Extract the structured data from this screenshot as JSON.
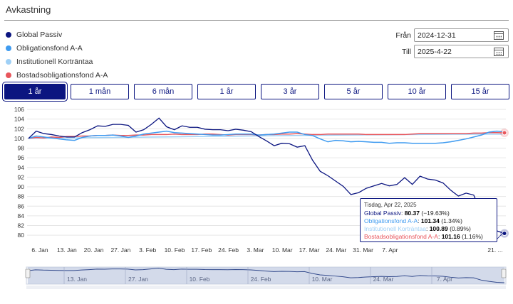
{
  "header": {
    "title": "Avkastning"
  },
  "legend": [
    {
      "label": "Global Passiv",
      "color": "#0b1580"
    },
    {
      "label": "Obligationsfond A-A",
      "color": "#3f9bf0"
    },
    {
      "label": "Institutionell Korträntaa",
      "color": "#9fd0f6"
    },
    {
      "label": "Bostadsobligationsfond A-A",
      "color": "#e8565c"
    }
  ],
  "dates": {
    "from_label": "Från",
    "from_value": "2024-12-31",
    "to_label": "Till",
    "to_value": "2025-4-22"
  },
  "range_buttons": [
    "1 år",
    "1 mån",
    "6 mån",
    "1 år",
    "3 år",
    "5 år",
    "10 år",
    "15 år"
  ],
  "tooltip": {
    "date": "Tisdag, Apr 22, 2025",
    "rows": [
      {
        "name": "Global Passiv",
        "value": "80.37",
        "change": "(−19.63%)",
        "color": "#0b1580"
      },
      {
        "name": "Obligationsfond A-A",
        "value": "101.34",
        "change": "(1.34%)",
        "color": "#3f9bf0"
      },
      {
        "name": "Institutionell Korträntaa",
        "value": "100.89",
        "change": "(0.89%)",
        "color": "#9fd0f6"
      },
      {
        "name": "Bostadsobligationsfond A-A",
        "value": "101.16",
        "change": "(1.16%)",
        "color": "#e8565c"
      }
    ]
  },
  "chart_data": {
    "type": "line",
    "x_ticks": [
      "6. Jan",
      "13. Jan",
      "20. Jan",
      "27. Jan",
      "3. Feb",
      "10. Feb",
      "17. Feb",
      "24. Feb",
      "3. Mar",
      "10. Mar",
      "17. Mar",
      "24. Mar",
      "31. Mar",
      "7. Apr",
      "21. ..."
    ],
    "y_ticks": [
      80,
      82,
      84,
      86,
      88,
      90,
      92,
      94,
      96,
      98,
      100,
      102,
      104,
      106
    ],
    "ylim": [
      79,
      106
    ],
    "navigator_ticks": [
      "13. Jan",
      "27. Jan",
      "10. Feb",
      "24. Feb",
      "10. Mar",
      "24. Mar",
      "7. Apr"
    ],
    "series": [
      {
        "name": "Global Passiv",
        "color": "#0b1580",
        "values": [
          100,
          101.5,
          101,
          100.8,
          100.5,
          100.3,
          100.3,
          101.2,
          101.8,
          102.6,
          102.5,
          102.9,
          102.9,
          102.7,
          101.3,
          101.8,
          102.9,
          104.2,
          102.4,
          101.8,
          102.6,
          102.3,
          102.3,
          101.9,
          101.8,
          101.8,
          101.6,
          101.9,
          101.7,
          101.4,
          100.4,
          99.5,
          98.5,
          99,
          98.9,
          98.2,
          98.5,
          95.5,
          93.2,
          92.3,
          91.2,
          90.1,
          88.4,
          88.8,
          89.7,
          90.2,
          90.7,
          90.2,
          90.5,
          91.9,
          90.5,
          92.2,
          91.6,
          91.4,
          90.8,
          89.3,
          88.1,
          88.7,
          88.3,
          84.5,
          82.5,
          80.9,
          80.37
        ]
      },
      {
        "name": "Obligationsfond A-A",
        "color": "#3f9bf0",
        "values": [
          100,
          100.5,
          100.3,
          100.1,
          99.9,
          99.7,
          99.6,
          100.2,
          100.5,
          100.6,
          100.6,
          100.7,
          100.5,
          100.2,
          100.5,
          100.9,
          101.1,
          101.3,
          101.5,
          101.2,
          101.1,
          101,
          100.9,
          100.8,
          100.7,
          100.7,
          100.8,
          100.9,
          100.9,
          100.9,
          100.7,
          100.8,
          100.9,
          101.1,
          101.3,
          101.3,
          100.8,
          100.6,
          99.9,
          99.3,
          99.6,
          99.5,
          99.3,
          99.4,
          99.3,
          99.2,
          99.2,
          99,
          99.1,
          99.1,
          99,
          99,
          99,
          99,
          99.1,
          99.3,
          99.6,
          99.9,
          100.3,
          100.7,
          101.3,
          101.5,
          101.34
        ]
      },
      {
        "name": "Institutionell Korträntaa",
        "color": "#9fd0f6",
        "values": [
          100,
          100.05,
          100.1,
          100.14,
          100.19,
          100.23,
          100.28,
          100.32,
          100.37,
          100.41,
          100.45,
          100.5,
          100.54,
          100.58,
          100.62,
          100.66,
          100.7,
          100.73,
          100.76,
          100.79,
          100.82,
          100.85,
          100.87,
          100.89,
          100.89
        ]
      },
      {
        "name": "Bostadsobligationsfond A-A",
        "color": "#e8565c",
        "values": [
          100,
          100.2,
          100.1,
          100.3,
          100.2,
          100.4,
          100.4,
          100.5,
          100.5,
          100.6,
          100.6,
          100.7,
          100.6,
          100.6,
          100.7,
          100.7,
          100.8,
          100.8,
          100.8,
          100.9,
          100.8,
          100.8,
          100.8,
          100.9,
          100.9,
          100.8,
          100.7,
          100.8,
          100.8,
          100.8,
          100.7,
          100.8,
          100.8,
          100.9,
          100.9,
          101,
          100.9,
          100.8,
          100.8,
          100.9,
          100.9,
          100.9,
          100.9,
          100.9,
          100.8,
          100.8,
          100.8,
          100.8,
          100.8,
          100.8,
          100.9,
          101,
          101,
          101,
          101,
          101,
          101,
          101,
          101.1,
          101.1,
          101.2,
          101.2,
          101.16
        ]
      }
    ]
  }
}
